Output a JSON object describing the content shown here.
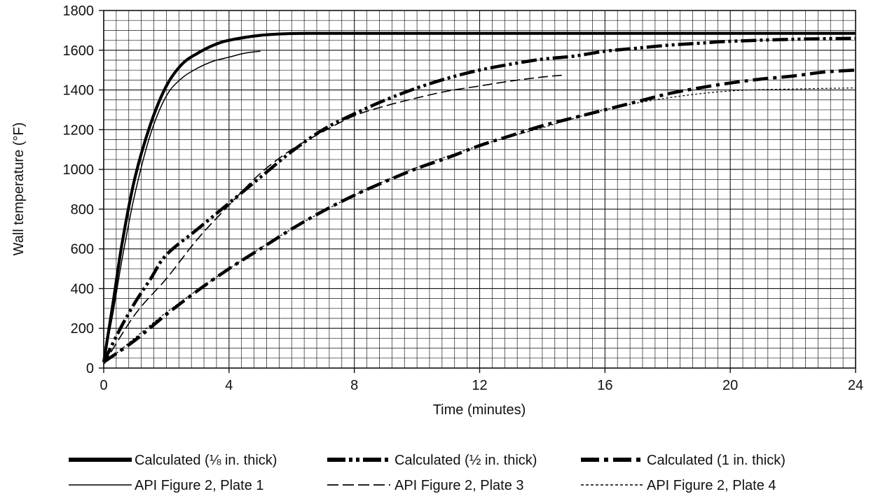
{
  "chart_data": {
    "type": "line",
    "title": "",
    "xlabel": "Time (minutes)",
    "ylabel": "Wall temperature (°F)",
    "xlim": [
      0,
      24
    ],
    "ylim": [
      0,
      1800
    ],
    "xticks": [
      "0",
      "4",
      "8",
      "12",
      "16",
      "20",
      "24"
    ],
    "yticks": [
      "0",
      "200",
      "400",
      "600",
      "800",
      "1000",
      "1200",
      "1400",
      "1600",
      "1800"
    ],
    "grid": true,
    "x_minor_step": 0.4,
    "y_minor_step": 50,
    "legend_position": "bottom",
    "series": [
      {
        "name": "Calculated (⅛ in. thick)",
        "line_style": "solid-thick",
        "points": [
          [
            0,
            30
          ],
          [
            0.3,
            330
          ],
          [
            0.6,
            640
          ],
          [
            1,
            960
          ],
          [
            1.5,
            1230
          ],
          [
            2,
            1420
          ],
          [
            2.5,
            1530
          ],
          [
            3,
            1585
          ],
          [
            3.5,
            1625
          ],
          [
            4,
            1650
          ],
          [
            5,
            1675
          ],
          [
            6,
            1684
          ],
          [
            7,
            1685
          ],
          [
            8,
            1685
          ],
          [
            10,
            1685
          ],
          [
            12,
            1685
          ],
          [
            14,
            1685
          ],
          [
            16,
            1685
          ],
          [
            18,
            1685
          ],
          [
            20,
            1685
          ],
          [
            22,
            1685
          ],
          [
            24,
            1685
          ]
        ]
      },
      {
        "name": "Calculated (½ in. thick)",
        "line_style": "dash-dot-dot",
        "points": [
          [
            0,
            30
          ],
          [
            0.5,
            190
          ],
          [
            1,
            330
          ],
          [
            1.5,
            450
          ],
          [
            2,
            570
          ],
          [
            3,
            700
          ],
          [
            4,
            830
          ],
          [
            5,
            960
          ],
          [
            6,
            1090
          ],
          [
            7,
            1200
          ],
          [
            8,
            1280
          ],
          [
            9,
            1350
          ],
          [
            10,
            1410
          ],
          [
            11,
            1460
          ],
          [
            12,
            1500
          ],
          [
            13,
            1530
          ],
          [
            14,
            1555
          ],
          [
            15,
            1570
          ],
          [
            16,
            1595
          ],
          [
            17,
            1610
          ],
          [
            18,
            1625
          ],
          [
            19,
            1635
          ],
          [
            20,
            1645
          ],
          [
            22,
            1655
          ],
          [
            24,
            1660
          ]
        ]
      },
      {
        "name": "Calculated (1 in. thick)",
        "line_style": "dash-dot",
        "points": [
          [
            0,
            30
          ],
          [
            1,
            140
          ],
          [
            2,
            270
          ],
          [
            3,
            390
          ],
          [
            4,
            500
          ],
          [
            5,
            600
          ],
          [
            6,
            700
          ],
          [
            7,
            790
          ],
          [
            8,
            870
          ],
          [
            9,
            940
          ],
          [
            10,
            1005
          ],
          [
            11,
            1060
          ],
          [
            12,
            1120
          ],
          [
            13,
            1170
          ],
          [
            14,
            1220
          ],
          [
            15,
            1260
          ],
          [
            16,
            1300
          ],
          [
            17,
            1340
          ],
          [
            18,
            1380
          ],
          [
            19,
            1410
          ],
          [
            20,
            1435
          ],
          [
            21,
            1455
          ],
          [
            22,
            1470
          ],
          [
            23,
            1490
          ],
          [
            24,
            1500
          ]
        ]
      },
      {
        "name": "API Figure 2, Plate 1",
        "line_style": "solid-thin",
        "points": [
          [
            0,
            30
          ],
          [
            0.3,
            280
          ],
          [
            0.6,
            560
          ],
          [
            1,
            880
          ],
          [
            1.5,
            1180
          ],
          [
            2,
            1370
          ],
          [
            2.5,
            1460
          ],
          [
            3,
            1510
          ],
          [
            3.5,
            1545
          ],
          [
            4,
            1565
          ],
          [
            4.5,
            1585
          ],
          [
            5,
            1595
          ]
        ]
      },
      {
        "name": "API Figure 2, Plate 3",
        "line_style": "long-dash",
        "points": [
          [
            0,
            20
          ],
          [
            1,
            270
          ],
          [
            2,
            450
          ],
          [
            3,
            650
          ],
          [
            4,
            820
          ],
          [
            5,
            980
          ],
          [
            6,
            1100
          ],
          [
            7,
            1190
          ],
          [
            8,
            1270
          ],
          [
            9,
            1320
          ],
          [
            10,
            1360
          ],
          [
            11,
            1395
          ],
          [
            12,
            1420
          ],
          [
            13,
            1445
          ],
          [
            14,
            1465
          ],
          [
            14.7,
            1475
          ]
        ]
      },
      {
        "name": "API Figure 2, Plate 4",
        "line_style": "short-dash",
        "points": [
          [
            0,
            20
          ],
          [
            2,
            280
          ],
          [
            4,
            500
          ],
          [
            6,
            700
          ],
          [
            8,
            870
          ],
          [
            10,
            1010
          ],
          [
            12,
            1120
          ],
          [
            14,
            1210
          ],
          [
            16,
            1300
          ],
          [
            18,
            1360
          ],
          [
            20,
            1395
          ],
          [
            22,
            1405
          ],
          [
            24,
            1410
          ]
        ]
      }
    ]
  },
  "legend": [
    {
      "label": "Calculated (⅛ in. thick)"
    },
    {
      "label": "Calculated (½ in. thick)"
    },
    {
      "label": "Calculated (1 in. thick)"
    },
    {
      "label": "API Figure 2, Plate 1"
    },
    {
      "label": "API Figure 2, Plate 3"
    },
    {
      "label": "API Figure 2, Plate 4"
    }
  ]
}
